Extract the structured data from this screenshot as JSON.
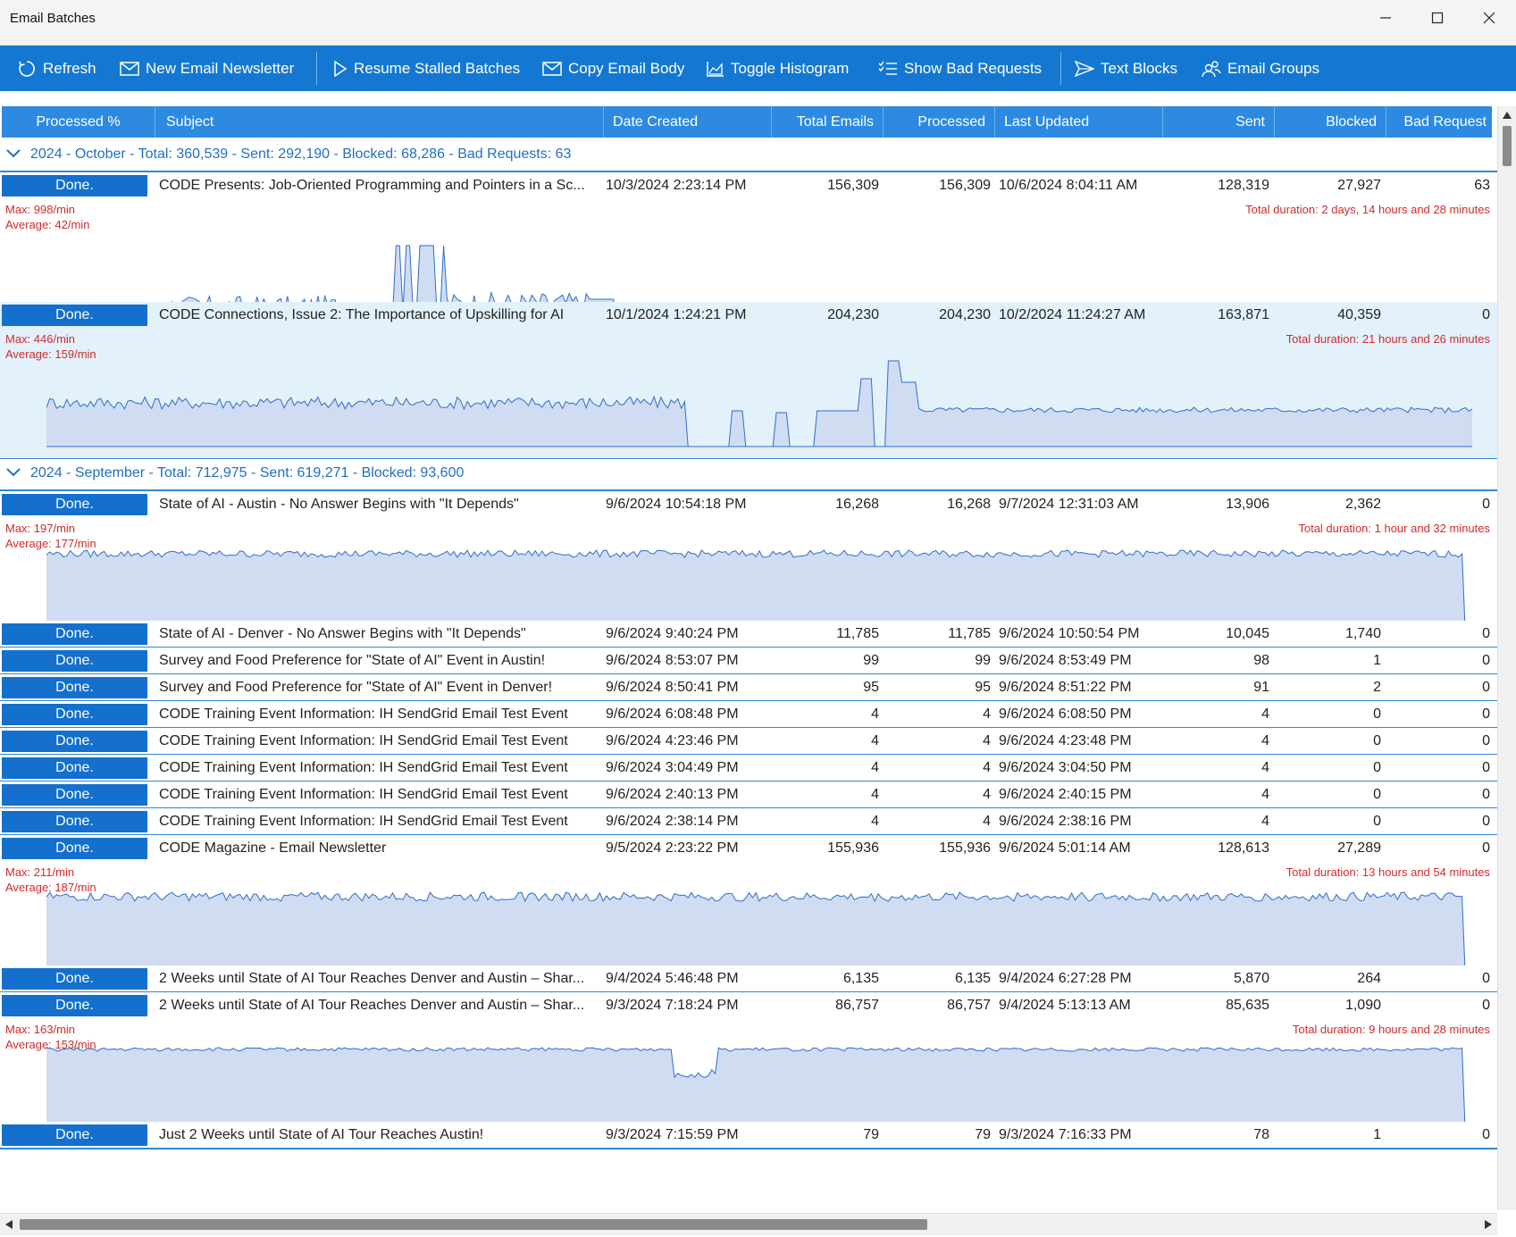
{
  "window": {
    "title": "Email Batches"
  },
  "toolbar": {
    "refresh": "Refresh",
    "new_newsletter": "New Email Newsletter",
    "resume_stalled": "Resume Stalled Batches",
    "copy_body": "Copy Email Body",
    "toggle_histogram": "Toggle Histogram",
    "show_bad_requests": "Show Bad Requests",
    "text_blocks": "Text Blocks",
    "email_groups": "Email Groups"
  },
  "columns": {
    "processed_pct": "Processed %",
    "subject": "Subject",
    "date_created": "Date Created",
    "total_emails": "Total Emails",
    "processed": "Processed",
    "last_updated": "Last Updated",
    "sent": "Sent",
    "blocked": "Blocked",
    "bad_request": "Bad Request"
  },
  "groups": [
    {
      "label": "2024 - October - Total: 360,539 - Sent: 292,190 - Blocked: 68,286 - Bad Requests: 63"
    },
    {
      "label": "2024 - September - Total: 712,975 - Sent: 619,271 - Blocked: 93,600"
    }
  ],
  "rows": [
    {
      "status": "Done.",
      "subject": "CODE Presents: Job-Oriented Programming and Pointers in a Sc...",
      "date_created": "10/3/2024 2:23:14 PM",
      "total": "156,309",
      "processed": "156,309",
      "last_updated": "10/6/2024 8:04:11 AM",
      "sent": "128,319",
      "blocked": "27,927",
      "bad": "63",
      "histogram": {
        "max": "Max: 998/min",
        "average": "Average: 42/min",
        "duration": "Total duration: 2 days, 14 hours and 28 minutes"
      }
    },
    {
      "status": "Done.",
      "subject": "CODE Connections, Issue 2: The Importance of Upskilling for AI",
      "date_created": "10/1/2024 1:24:21 PM",
      "total": "204,230",
      "processed": "204,230",
      "last_updated": "10/2/2024 11:24:27 AM",
      "sent": "163,871",
      "blocked": "40,359",
      "bad": "0",
      "histogram": {
        "max": "Max: 446/min",
        "average": "Average: 159/min",
        "duration": "Total duration: 21 hours and 26 minutes"
      }
    },
    {
      "status": "Done.",
      "subject": "State of AI - Austin - No Answer Begins with \"It Depends\"",
      "date_created": "9/6/2024 10:54:18 PM",
      "total": "16,268",
      "processed": "16,268",
      "last_updated": "9/7/2024 12:31:03 AM",
      "sent": "13,906",
      "blocked": "2,362",
      "bad": "0",
      "histogram": {
        "max": "Max: 197/min",
        "average": "Average: 177/min",
        "duration": "Total duration: 1 hour and 32 minutes"
      }
    },
    {
      "status": "Done.",
      "subject": "State of AI - Denver - No Answer Begins with \"It Depends\"",
      "date_created": "9/6/2024 9:40:24 PM",
      "total": "11,785",
      "processed": "11,785",
      "last_updated": "9/6/2024 10:50:54 PM",
      "sent": "10,045",
      "blocked": "1,740",
      "bad": "0"
    },
    {
      "status": "Done.",
      "subject": "Survey and Food Preference for \"State of AI\" Event in Austin!",
      "date_created": "9/6/2024 8:53:07 PM",
      "total": "99",
      "processed": "99",
      "last_updated": "9/6/2024 8:53:49 PM",
      "sent": "98",
      "blocked": "1",
      "bad": "0"
    },
    {
      "status": "Done.",
      "subject": "Survey and Food Preference for \"State of AI\" Event in Denver!",
      "date_created": "9/6/2024 8:50:41 PM",
      "total": "95",
      "processed": "95",
      "last_updated": "9/6/2024 8:51:22 PM",
      "sent": "91",
      "blocked": "2",
      "bad": "0"
    },
    {
      "status": "Done.",
      "subject": "CODE Training Event Information: IH SendGrid Email Test Event",
      "date_created": "9/6/2024 6:08:48 PM",
      "total": "4",
      "processed": "4",
      "last_updated": "9/6/2024 6:08:50 PM",
      "sent": "4",
      "blocked": "0",
      "bad": "0"
    },
    {
      "status": "Done.",
      "subject": "CODE Training Event Information: IH SendGrid Email Test Event",
      "date_created": "9/6/2024 4:23:46 PM",
      "total": "4",
      "processed": "4",
      "last_updated": "9/6/2024 4:23:48 PM",
      "sent": "4",
      "blocked": "0",
      "bad": "0"
    },
    {
      "status": "Done.",
      "subject": "CODE Training Event Information: IH SendGrid Email Test Event",
      "date_created": "9/6/2024 3:04:49 PM",
      "total": "4",
      "processed": "4",
      "last_updated": "9/6/2024 3:04:50 PM",
      "sent": "4",
      "blocked": "0",
      "bad": "0"
    },
    {
      "status": "Done.",
      "subject": "CODE Training Event Information: IH SendGrid Email Test Event",
      "date_created": "9/6/2024 2:40:13 PM",
      "total": "4",
      "processed": "4",
      "last_updated": "9/6/2024 2:40:15 PM",
      "sent": "4",
      "blocked": "0",
      "bad": "0"
    },
    {
      "status": "Done.",
      "subject": "CODE Training Event Information: IH SendGrid Email Test Event",
      "date_created": "9/6/2024 2:38:14 PM",
      "total": "4",
      "processed": "4",
      "last_updated": "9/6/2024 2:38:16 PM",
      "sent": "4",
      "blocked": "0",
      "bad": "0"
    },
    {
      "status": "Done.",
      "subject": "CODE Magazine - Email Newsletter",
      "date_created": "9/5/2024 2:23:22 PM",
      "total": "155,936",
      "processed": "155,936",
      "last_updated": "9/6/2024 5:01:14 AM",
      "sent": "128,613",
      "blocked": "27,289",
      "bad": "0",
      "histogram": {
        "max": "Max: 211/min",
        "average": "Average: 187/min",
        "duration": "Total duration: 13 hours and 54 minutes"
      }
    },
    {
      "status": "Done.",
      "subject": "2 Weeks until State of AI Tour Reaches Denver and Austin – Shar...",
      "date_created": "9/4/2024 5:46:48 PM",
      "total": "6,135",
      "processed": "6,135",
      "last_updated": "9/4/2024 6:27:28 PM",
      "sent": "5,870",
      "blocked": "264",
      "bad": "0"
    },
    {
      "status": "Done.",
      "subject": "2 Weeks until State of AI Tour Reaches Denver and Austin – Shar...",
      "date_created": "9/3/2024 7:18:24 PM",
      "total": "86,757",
      "processed": "86,757",
      "last_updated": "9/4/2024 5:13:13 AM",
      "sent": "85,635",
      "blocked": "1,090",
      "bad": "0",
      "histogram": {
        "max": "Max: 163/min",
        "average": "Average: 153/min",
        "duration": "Total duration: 9 hours and 28 minutes"
      }
    },
    {
      "status": "Done.",
      "subject": "Just 2 Weeks until State of AI Tour Reaches Austin!",
      "date_created": "9/3/2024 7:15:59 PM",
      "total": "79",
      "processed": "79",
      "last_updated": "9/3/2024 7:16:33 PM",
      "sent": "78",
      "blocked": "1",
      "bad": "0"
    }
  ]
}
